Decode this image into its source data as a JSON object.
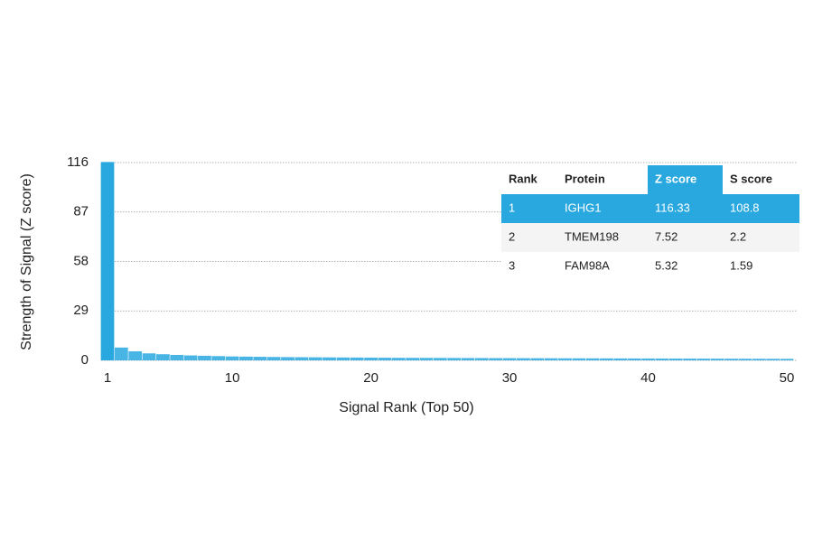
{
  "chart_data": {
    "type": "bar",
    "x_label": "Signal Rank (Top 50)",
    "y_label": "Strength of Signal (Z score)",
    "x": [
      1,
      2,
      3,
      4,
      5,
      6,
      7,
      8,
      9,
      10,
      11,
      12,
      13,
      14,
      15,
      16,
      17,
      18,
      19,
      20,
      21,
      22,
      23,
      24,
      25,
      26,
      27,
      28,
      29,
      30,
      31,
      32,
      33,
      34,
      35,
      36,
      37,
      38,
      39,
      40,
      41,
      42,
      43,
      44,
      45,
      46,
      47,
      48,
      49,
      50
    ],
    "values": [
      116.33,
      7.52,
      5.32,
      4.1,
      3.6,
      3.2,
      2.9,
      2.7,
      2.5,
      2.3,
      2.2,
      2.1,
      2.0,
      1.9,
      1.85,
      1.8,
      1.75,
      1.7,
      1.65,
      1.6,
      1.55,
      1.5,
      1.48,
      1.45,
      1.42,
      1.4,
      1.37,
      1.35,
      1.32,
      1.3,
      1.28,
      1.26,
      1.24,
      1.22,
      1.2,
      1.18,
      1.16,
      1.14,
      1.12,
      1.1,
      1.08,
      1.06,
      1.04,
      1.02,
      1.0,
      0.98,
      0.96,
      0.94,
      0.92,
      0.9
    ],
    "color": "#29a8e0",
    "xlim": [
      1,
      50
    ],
    "xticks": [
      1,
      10,
      20,
      30,
      40,
      50
    ],
    "ylim": [
      0,
      116
    ],
    "yticks": [
      0,
      29,
      58,
      87,
      116
    ],
    "grid": true
  },
  "table": {
    "columns": [
      "Rank",
      "Protein",
      "Z score",
      "S score"
    ],
    "rows": [
      [
        1,
        "IGHG1",
        116.33,
        108.8
      ],
      [
        2,
        "TMEM198",
        7.52,
        2.2
      ],
      [
        3,
        "FAM98A",
        5.32,
        1.59
      ]
    ]
  }
}
